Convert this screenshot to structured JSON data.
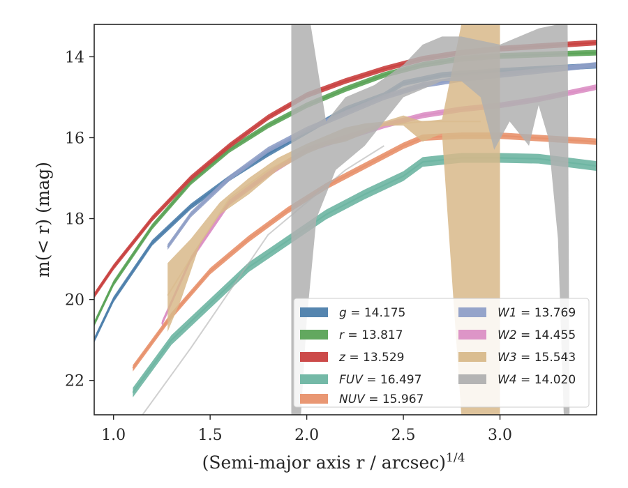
{
  "chart_data": {
    "type": "line",
    "xlabel": "(Semi-major axis r / arcsec)",
    "xlabel_exponent": "1/4",
    "ylabel": "m(< r) (mag)",
    "xlim": [
      0.9,
      3.5
    ],
    "ylim": [
      22.85,
      13.2
    ],
    "y_inverted": true,
    "x_ticks": [
      1.0,
      1.5,
      2.0,
      2.5,
      3.0
    ],
    "x_tick_labels": [
      "1.0",
      "1.5",
      "2.0",
      "2.5",
      "3.0"
    ],
    "y_ticks": [
      14,
      16,
      18,
      20,
      22
    ],
    "y_tick_labels": [
      "14",
      "16",
      "18",
      "20",
      "22"
    ],
    "grid": false,
    "legend_position": "lower-right",
    "legend_columns": 2,
    "series": [
      {
        "name": "g",
        "label_value": "14.175",
        "color": "#4c7eab",
        "band_width": 0.07,
        "points": [
          [
            0.9,
            21.0
          ],
          [
            1.0,
            20.0
          ],
          [
            1.2,
            18.6
          ],
          [
            1.4,
            17.7
          ],
          [
            1.6,
            17.0
          ],
          [
            1.8,
            16.4
          ],
          [
            2.0,
            15.85
          ],
          [
            2.2,
            15.3
          ],
          [
            2.4,
            14.95
          ],
          [
            2.5,
            14.65
          ],
          [
            2.7,
            14.45
          ],
          [
            3.0,
            14.35
          ],
          [
            3.5,
            14.22
          ]
        ]
      },
      {
        "name": "r",
        "label_value": "13.817",
        "color": "#5aa356",
        "band_width": 0.07,
        "points": [
          [
            0.9,
            20.6
          ],
          [
            1.0,
            19.6
          ],
          [
            1.2,
            18.2
          ],
          [
            1.4,
            17.1
          ],
          [
            1.6,
            16.3
          ],
          [
            1.8,
            15.7
          ],
          [
            2.0,
            15.2
          ],
          [
            2.2,
            14.8
          ],
          [
            2.4,
            14.45
          ],
          [
            2.6,
            14.2
          ],
          [
            2.8,
            14.05
          ],
          [
            3.0,
            13.98
          ],
          [
            3.5,
            13.9
          ]
        ]
      },
      {
        "name": "z",
        "label_value": "13.529",
        "color": "#c9403f",
        "band_width": 0.07,
        "points": [
          [
            0.9,
            19.9
          ],
          [
            1.0,
            19.2
          ],
          [
            1.2,
            18.0
          ],
          [
            1.4,
            17.0
          ],
          [
            1.6,
            16.2
          ],
          [
            1.8,
            15.5
          ],
          [
            2.0,
            14.95
          ],
          [
            2.2,
            14.6
          ],
          [
            2.4,
            14.3
          ],
          [
            2.6,
            14.05
          ],
          [
            2.8,
            13.9
          ],
          [
            3.0,
            13.8
          ],
          [
            3.5,
            13.65
          ]
        ]
      },
      {
        "name": "FUV",
        "label_value": "16.497",
        "color": "#6db5a2",
        "band_width": 0.12,
        "points": [
          [
            1.1,
            22.3
          ],
          [
            1.3,
            21.0
          ],
          [
            1.5,
            20.1
          ],
          [
            1.7,
            19.2
          ],
          [
            1.9,
            18.55
          ],
          [
            2.1,
            17.9
          ],
          [
            2.3,
            17.4
          ],
          [
            2.5,
            16.95
          ],
          [
            2.6,
            16.6
          ],
          [
            2.8,
            16.5
          ],
          [
            3.0,
            16.5
          ],
          [
            3.2,
            16.52
          ],
          [
            3.5,
            16.7
          ]
        ]
      },
      {
        "name": "NUV",
        "label_value": "15.967",
        "color": "#e8916b",
        "band_width": 0.08,
        "points": [
          [
            1.1,
            21.7
          ],
          [
            1.3,
            20.4
          ],
          [
            1.5,
            19.3
          ],
          [
            1.7,
            18.5
          ],
          [
            1.9,
            17.8
          ],
          [
            2.1,
            17.2
          ],
          [
            2.3,
            16.7
          ],
          [
            2.5,
            16.2
          ],
          [
            2.6,
            16.0
          ],
          [
            2.8,
            15.95
          ],
          [
            3.0,
            15.95
          ],
          [
            3.5,
            16.1
          ]
        ]
      },
      {
        "name": "W1",
        "label_value": "13.769",
        "color": "#8f9fc7",
        "band_width": 0.07,
        "points": [
          [
            1.28,
            18.7
          ],
          [
            1.4,
            17.9
          ],
          [
            1.6,
            17.0
          ],
          [
            1.8,
            16.3
          ],
          [
            2.0,
            15.8
          ],
          [
            2.2,
            15.4
          ],
          [
            2.4,
            15.0
          ],
          [
            2.6,
            14.7
          ],
          [
            2.8,
            14.55
          ],
          [
            3.0,
            14.45
          ],
          [
            3.5,
            14.2
          ]
        ]
      },
      {
        "name": "W2",
        "label_value": "14.455",
        "color": "#db8fc4",
        "band_width": 0.07,
        "points": [
          [
            1.25,
            20.6
          ],
          [
            1.4,
            19.0
          ],
          [
            1.6,
            17.6
          ],
          [
            1.8,
            16.9
          ],
          [
            2.0,
            16.3
          ],
          [
            2.2,
            16.0
          ],
          [
            2.4,
            15.7
          ],
          [
            2.6,
            15.45
          ],
          [
            2.8,
            15.3
          ],
          [
            3.0,
            15.2
          ],
          [
            3.2,
            15.05
          ],
          [
            3.5,
            14.75
          ]
        ]
      },
      {
        "name": "W3",
        "label_value": "15.543",
        "color": "#d8b98a",
        "band_width": 0.0,
        "points": [
          [
            1.28,
            19.9
          ],
          [
            1.45,
            18.6
          ],
          [
            1.6,
            17.5
          ],
          [
            1.8,
            16.8
          ],
          [
            2.0,
            16.3
          ],
          [
            2.2,
            16.0
          ],
          [
            2.4,
            15.7
          ],
          [
            2.6,
            15.6
          ],
          [
            2.7,
            15.6
          ],
          [
            2.8,
            15.6
          ],
          [
            2.9,
            15.6
          ]
        ],
        "band_upper": [
          [
            1.28,
            19.1
          ],
          [
            1.4,
            18.5
          ],
          [
            1.55,
            17.6
          ],
          [
            1.7,
            17.0
          ],
          [
            1.85,
            16.5
          ],
          [
            2.0,
            16.15
          ],
          [
            2.1,
            15.95
          ],
          [
            2.2,
            15.75
          ],
          [
            2.3,
            15.65
          ],
          [
            2.4,
            15.6
          ],
          [
            2.5,
            15.45
          ],
          [
            2.6,
            15.6
          ],
          [
            2.7,
            15.55
          ],
          [
            2.8,
            13.2
          ],
          [
            3.0,
            13.2
          ],
          [
            3.0,
            13.2
          ]
        ],
        "band_lower": [
          [
            1.28,
            20.8
          ],
          [
            1.35,
            20.0
          ],
          [
            1.45,
            18.6
          ],
          [
            1.55,
            17.9
          ],
          [
            1.7,
            17.4
          ],
          [
            1.85,
            16.8
          ],
          [
            2.0,
            16.4
          ],
          [
            2.1,
            16.2
          ],
          [
            2.2,
            16.1
          ],
          [
            2.3,
            15.9
          ],
          [
            2.4,
            15.7
          ],
          [
            2.5,
            15.7
          ],
          [
            2.6,
            16.1
          ],
          [
            2.7,
            15.9
          ],
          [
            2.8,
            22.85
          ],
          [
            3.0,
            22.85
          ]
        ]
      },
      {
        "name": "W4",
        "label_value": "14.020",
        "color": "#b0b0b0",
        "band_width": 0.0,
        "points": [
          [
            1.15,
            22.85
          ],
          [
            1.4,
            21.2
          ],
          [
            1.6,
            19.8
          ],
          [
            1.8,
            18.4
          ],
          [
            2.0,
            17.6
          ],
          [
            2.2,
            16.8
          ],
          [
            2.4,
            16.2
          ]
        ],
        "band_upper": [
          [
            1.92,
            13.2
          ],
          [
            2.02,
            13.2
          ],
          [
            2.1,
            15.6
          ],
          [
            2.2,
            15.0
          ],
          [
            2.35,
            14.7
          ],
          [
            2.5,
            14.2
          ],
          [
            2.6,
            13.7
          ],
          [
            2.7,
            13.5
          ],
          [
            2.8,
            13.5
          ],
          [
            2.9,
            13.6
          ],
          [
            3.0,
            13.7
          ],
          [
            3.1,
            13.5
          ],
          [
            3.2,
            13.3
          ],
          [
            3.3,
            13.2
          ],
          [
            3.35,
            13.2
          ]
        ],
        "band_lower": [
          [
            1.92,
            22.85
          ],
          [
            1.97,
            22.85
          ],
          [
            2.0,
            20.5
          ],
          [
            2.05,
            18.0
          ],
          [
            2.15,
            16.8
          ],
          [
            2.3,
            16.2
          ],
          [
            2.4,
            15.6
          ],
          [
            2.5,
            15.0
          ],
          [
            2.6,
            14.8
          ],
          [
            2.7,
            14.6
          ],
          [
            2.8,
            14.6
          ],
          [
            2.9,
            15.0
          ],
          [
            2.97,
            16.3
          ],
          [
            3.05,
            15.6
          ],
          [
            3.1,
            15.9
          ],
          [
            3.15,
            16.2
          ],
          [
            3.2,
            15.2
          ],
          [
            3.25,
            16.0
          ],
          [
            3.3,
            18.5
          ],
          [
            3.33,
            22.85
          ],
          [
            3.36,
            22.85
          ]
        ]
      }
    ]
  }
}
